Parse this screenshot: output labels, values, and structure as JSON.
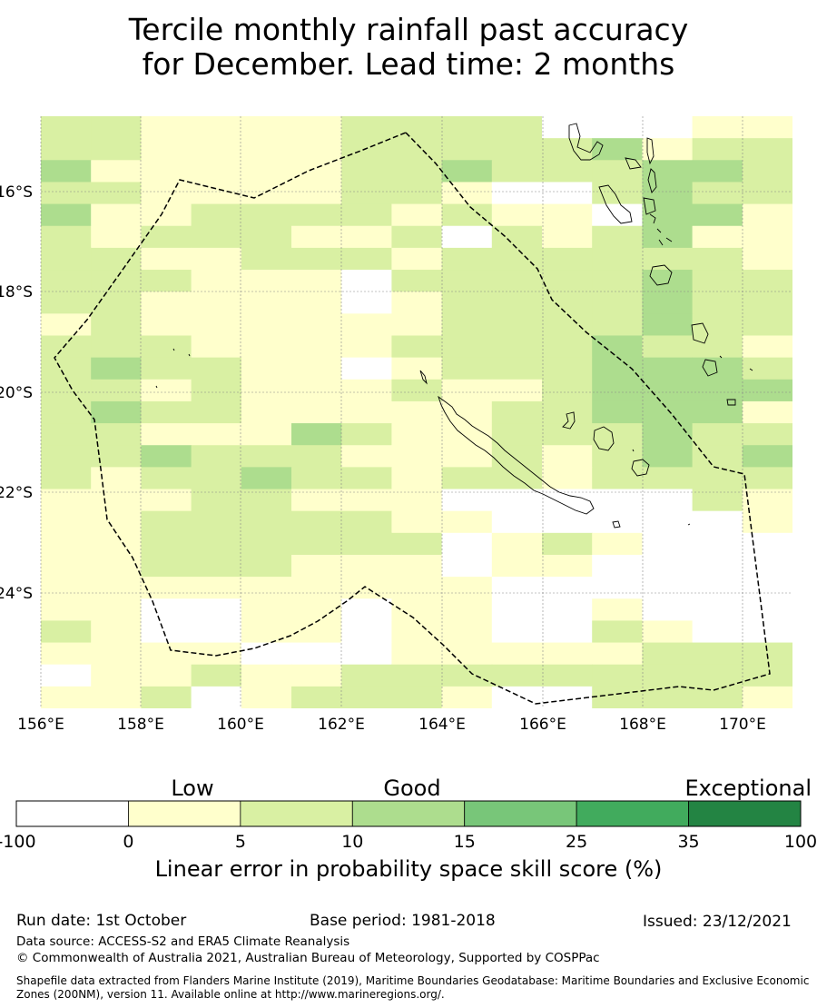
{
  "title_line1": "Tercile monthly rainfall past accuracy",
  "title_line2": "for December. Lead time: 2 months",
  "map": {
    "lon_labels": [
      "156°E",
      "158°E",
      "160°E",
      "162°E",
      "164°E",
      "166°E",
      "168°E",
      "170°E"
    ],
    "lat_labels": [
      "16°S",
      "18°S",
      "20°S",
      "22°S",
      "24°S"
    ],
    "skill_grid": [
      "221111222200011",
      "221111222223122",
      "311111223222332",
      "221111221002322",
      "311222212110331",
      "212221120212311",
      "221122212222221",
      "222111022222322",
      "221111012222322",
      "121111112222322",
      "222111122223221",
      "232211012223332",
      "221211121123333",
      "232211111223331",
      "221113211222322",
      "223222111212323",
      "212232212212222",
      "111221110000021",
      "112222211000001",
      "112222220121000",
      "112221110110000",
      "111111111000000",
      "110011011001000",
      "210011011002100",
      "111100011111222",
      "011211222222222",
      "112012221002221"
    ],
    "colors": {
      "c0": "#ffffff",
      "c1": "#ffffcc",
      "c2": "#d9f0a3",
      "c3": "#addd8e",
      "c4": "#78c679",
      "c5": "#41ab5d",
      "c6": "#238443"
    }
  },
  "legend": {
    "category_low": "Low",
    "category_good": "Good",
    "category_exceptional": "Exceptional",
    "ticks": [
      "-100",
      "0",
      "5",
      "10",
      "15",
      "25",
      "35",
      "100"
    ],
    "title": "Linear error in probability space skill score (%)"
  },
  "footer": {
    "run_date": "Run date: 1st October",
    "base_period": "Base period: 1981-2018",
    "issued": "Issued: 23/12/2021",
    "data_source": "Data source: ACCESS-S2 and ERA5 Climate Reanalysis",
    "copyright": "© Commonwealth of Australia 2021, Australian Bureau of Meteorology, Supported by COSPPac",
    "shapefile": "Shapefile data extracted from Flanders Marine Institute (2019), Maritime Boundaries Geodatabase: Maritime Boundaries and Exclusive Economic Zones (200NM), version 11. Available online at http://www.marineregions.org/."
  }
}
